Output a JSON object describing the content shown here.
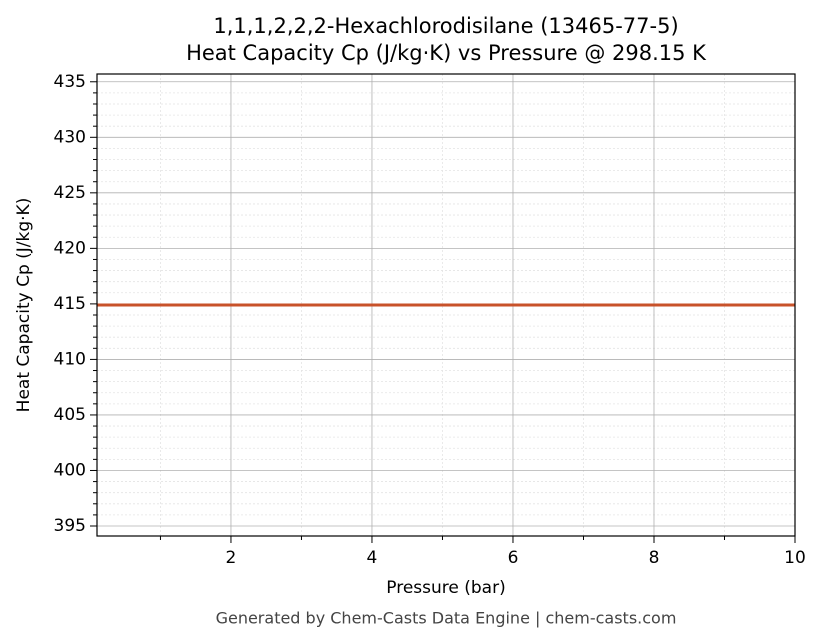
{
  "chart_data": {
    "type": "line",
    "title": "1,1,1,2,2,2-Hexachlorodisilane (13465-77-5)",
    "subtitle": "Heat Capacity Cp (J/kg·K) vs Pressure @ 298.15 K",
    "x_label": "Pressure (bar)",
    "y_label": "Heat Capacity Cp (J/kg·K)",
    "footer": "Generated by Chem-Casts Data Engine | chem-casts.com",
    "x": [
      0.1,
      10
    ],
    "series": [
      {
        "name": "Cp",
        "color": "#c8522a",
        "values": [
          414.9,
          414.9
        ]
      }
    ],
    "xlim": [
      0.1,
      10
    ],
    "xticks": [
      2,
      4,
      6,
      8,
      10
    ],
    "x_minor_ticks": [
      1,
      3,
      5,
      7,
      9
    ],
    "ylim": [
      394.1,
      435.7
    ],
    "yticks": [
      395,
      400,
      405,
      410,
      415,
      420,
      425,
      430,
      435
    ],
    "y_minor_ticks": [
      396,
      397,
      398,
      399,
      401,
      402,
      403,
      404,
      406,
      407,
      408,
      409,
      411,
      412,
      413,
      414,
      416,
      417,
      418,
      419,
      421,
      422,
      423,
      424,
      426,
      427,
      428,
      429,
      431,
      432,
      433,
      434
    ],
    "grid": true
  }
}
